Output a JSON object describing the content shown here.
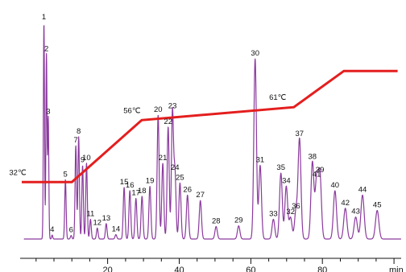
{
  "chart_data": {
    "type": "line",
    "title": "",
    "xlabel": "min",
    "ylabel": "",
    "xlim": [
      -4,
      102
    ],
    "xticks": [
      20,
      40,
      60,
      80
    ],
    "colors": {
      "chromatogram": "#8b3a9e",
      "temperature": "#e41e1e",
      "axis": "#111111"
    },
    "peaks": [
      {
        "label": "1",
        "rt": 2.2,
        "h": 0.985
      },
      {
        "label": "2",
        "rt": 2.9,
        "h": 0.84
      },
      {
        "label": "3",
        "rt": 3.4,
        "h": 0.555
      },
      {
        "label": "4",
        "rt": 4.5,
        "h": 0.018
      },
      {
        "label": "5",
        "rt": 8.2,
        "h": 0.27
      },
      {
        "label": "6",
        "rt": 9.8,
        "h": 0.016
      },
      {
        "label": "7",
        "rt": 11.1,
        "h": 0.425
      },
      {
        "label": "8",
        "rt": 11.9,
        "h": 0.465
      },
      {
        "label": "9",
        "rt": 13.0,
        "h": 0.335
      },
      {
        "label": "10",
        "rt": 14.1,
        "h": 0.345
      },
      {
        "label": "11",
        "rt": 15.2,
        "h": 0.09
      },
      {
        "label": "12",
        "rt": 17.1,
        "h": 0.05
      },
      {
        "label": "13",
        "rt": 19.6,
        "h": 0.07
      },
      {
        "label": "14",
        "rt": 22.3,
        "h": 0.02
      },
      {
        "label": "15",
        "rt": 24.6,
        "h": 0.235
      },
      {
        "label": "16",
        "rt": 26.2,
        "h": 0.22
      },
      {
        "label": "17",
        "rt": 27.9,
        "h": 0.185
      },
      {
        "label": "18",
        "rt": 29.6,
        "h": 0.195
      },
      {
        "label": "19",
        "rt": 31.8,
        "h": 0.24
      },
      {
        "label": "20",
        "rt": 34.1,
        "h": 0.565
      },
      {
        "label": "21",
        "rt": 35.4,
        "h": 0.345
      },
      {
        "label": "22",
        "rt": 36.9,
        "h": 0.51
      },
      {
        "label": "23",
        "rt": 38.1,
        "h": 0.58
      },
      {
        "label": "24",
        "rt": 38.8,
        "h": 0.3
      },
      {
        "label": "25",
        "rt": 40.2,
        "h": 0.255
      },
      {
        "label": "26",
        "rt": 42.3,
        "h": 0.2
      },
      {
        "label": "27",
        "rt": 45.9,
        "h": 0.175
      },
      {
        "label": "28",
        "rt": 50.3,
        "h": 0.057
      },
      {
        "label": "29",
        "rt": 56.6,
        "h": 0.06
      },
      {
        "label": "30",
        "rt": 61.2,
        "h": 0.82
      },
      {
        "label": "31",
        "rt": 62.6,
        "h": 0.335
      },
      {
        "label": "32",
        "rt": 71.1,
        "h": 0.098
      },
      {
        "label": "33",
        "rt": 66.3,
        "h": 0.09
      },
      {
        "label": "34",
        "rt": 69.9,
        "h": 0.24
      },
      {
        "label": "35",
        "rt": 68.4,
        "h": 0.3
      },
      {
        "label": "36",
        "rt": 72.6,
        "h": 0.125
      },
      {
        "label": "37",
        "rt": 73.6,
        "h": 0.455
      },
      {
        "label": "38",
        "rt": 77.2,
        "h": 0.35
      },
      {
        "label": "39",
        "rt": 79.3,
        "h": 0.29
      },
      {
        "label": "40",
        "rt": 83.5,
        "h": 0.22
      },
      {
        "label": "41",
        "rt": 78.4,
        "h": 0.27
      },
      {
        "label": "42",
        "rt": 86.4,
        "h": 0.14
      },
      {
        "label": "43",
        "rt": 89.3,
        "h": 0.1
      },
      {
        "label": "44",
        "rt": 91.2,
        "h": 0.2
      },
      {
        "label": "45",
        "rt": 95.3,
        "h": 0.13
      }
    ],
    "temperature_program": {
      "x": [
        -4,
        10,
        29.5,
        72,
        86,
        101
      ],
      "y": [
        32,
        32,
        56,
        61,
        75,
        75
      ],
      "ylim": [
        10,
        95
      ],
      "annotations": [
        {
          "text": "32℃",
          "x": 0,
          "y": 32
        },
        {
          "text": "56℃",
          "x": 29.5,
          "y": 56
        },
        {
          "text": "61℃",
          "x": 72,
          "y": 61
        }
      ]
    }
  }
}
